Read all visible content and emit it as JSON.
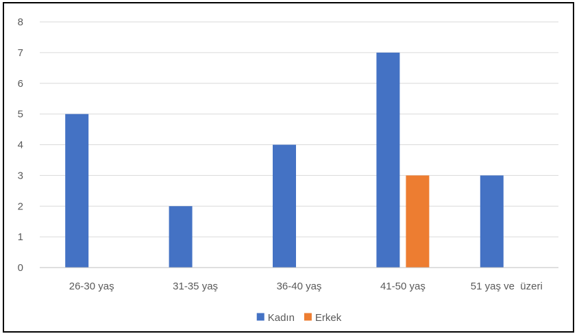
{
  "chart_data": {
    "type": "bar",
    "categories": [
      "26-30 yaş",
      "31-35 yaş",
      "36-40 yaş",
      "41-50 yaş",
      "51 yaş ve  üzeri"
    ],
    "series": [
      {
        "name": "Kadın",
        "values": [
          5,
          2,
          4,
          7,
          3
        ],
        "color": "#4472C4"
      },
      {
        "name": "Erkek",
        "values": [
          null,
          null,
          null,
          3,
          null
        ],
        "color": "#ED7D31"
      }
    ],
    "ylim": [
      0,
      8
    ],
    "yticks": [
      0,
      1,
      2,
      3,
      4,
      5,
      6,
      7,
      8
    ],
    "grid": true,
    "legend": "bottom",
    "gridline_color": "#D9D9D9",
    "axis_color": "#BFBFBF"
  }
}
